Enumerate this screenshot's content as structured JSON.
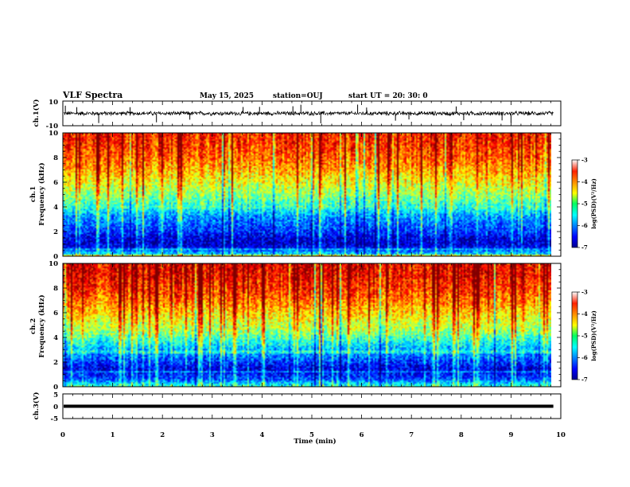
{
  "header": {
    "title": "VLF Spectra",
    "date": "May 15, 2025",
    "station": "station=OUJ",
    "start": "start  UT  =   20: 30: 0"
  },
  "chart_data": {
    "type": "heatmap",
    "xlabel": "Time  (min)",
    "xlim": [
      0,
      10
    ],
    "xticks": [
      "0",
      "1",
      "2",
      "3",
      "4",
      "5",
      "6",
      "7",
      "8",
      "9",
      "10"
    ],
    "data_end_min": 9.85,
    "panels": [
      {
        "id": "ch1-waveform",
        "type": "line",
        "ylabel": "ch.1(V)",
        "ylim": [
          -10,
          10
        ],
        "yticks": [
          "10",
          "-10"
        ],
        "baseline_v": 0,
        "noise_amplitude_v": 2,
        "spike_times_min": [
          0.05,
          0.28,
          0.72,
          1.35,
          1.88,
          2.55,
          3.62,
          3.95,
          4.62,
          4.78,
          5.18,
          5.92,
          6.1,
          6.68,
          6.95,
          7.9,
          8.05,
          8.82,
          9.0
        ]
      },
      {
        "id": "ch1-spectrogram",
        "type": "heatmap",
        "ylabel": "Frequency  (kHz)",
        "channel_label": "ch.1",
        "ylim": [
          0,
          10
        ],
        "yticks": [
          "0",
          "2",
          "4",
          "6",
          "8",
          "10"
        ],
        "colorbar_label": "log(PSD)(V²/Hz)",
        "clim": [
          -7,
          -3
        ],
        "colorbar_ticks": [
          "-3",
          "-4",
          "-5",
          "-6",
          "-7"
        ],
        "profile_khz": [
          0,
          0.3,
          0.6,
          1,
          1.5,
          2,
          2.6,
          3.2,
          4,
          4.8,
          5.6,
          6.4,
          7.2,
          8,
          9,
          10
        ],
        "profile_log_psd": [
          -5.4,
          -5.8,
          -6.4,
          -6.7,
          -6.6,
          -6.3,
          -6.1,
          -5.9,
          -5.4,
          -5.0,
          -4.7,
          -4.4,
          -4.1,
          -3.9,
          -3.7,
          -3.6
        ]
      },
      {
        "id": "ch2-spectrogram",
        "type": "heatmap",
        "ylabel": "Frequency  (kHz)",
        "channel_label": "ch.2",
        "ylim": [
          0,
          10
        ],
        "yticks": [
          "0",
          "2",
          "4",
          "6",
          "8",
          "10"
        ],
        "colorbar_label": "log(PSD)(V²/Hz)",
        "clim": [
          -7,
          -3
        ],
        "colorbar_ticks": [
          "-3",
          "-4",
          "-5",
          "-6",
          "-7"
        ],
        "profile_khz": [
          0,
          0.3,
          0.6,
          1,
          1.5,
          2,
          2.6,
          3.2,
          4,
          4.8,
          5.6,
          6.4,
          7.2,
          8,
          9,
          10
        ],
        "profile_log_psd": [
          -5.3,
          -5.7,
          -6.2,
          -6.4,
          -6.6,
          -6.3,
          -6.0,
          -5.7,
          -5.2,
          -4.8,
          -4.5,
          -4.2,
          -3.9,
          -3.7,
          -3.5,
          -3.4
        ]
      },
      {
        "id": "ch3-waveform",
        "type": "line",
        "ylabel": "ch.3(V)",
        "ylim": [
          -5,
          5
        ],
        "yticks": [
          "5",
          "0",
          "-5"
        ],
        "baseline_v": 0,
        "noise_amplitude_v": 0.25
      }
    ]
  }
}
